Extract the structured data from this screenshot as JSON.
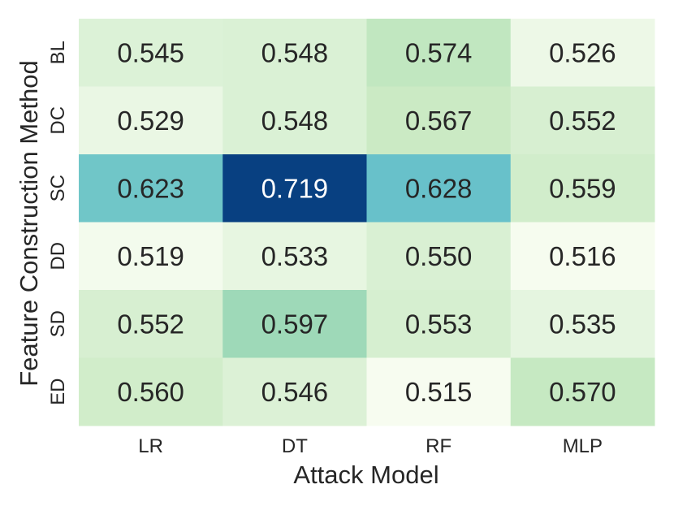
{
  "chart_data": {
    "type": "heatmap",
    "title": "",
    "xlabel": "Attack Model",
    "ylabel": "Feature Construction Method",
    "x_categories": [
      "LR",
      "DT",
      "RF",
      "MLP"
    ],
    "y_categories": [
      "BL",
      "DC",
      "SC",
      "DD",
      "SD",
      "ED"
    ],
    "values": [
      [
        0.545,
        0.548,
        0.574,
        0.526
      ],
      [
        0.529,
        0.548,
        0.567,
        0.552
      ],
      [
        0.623,
        0.719,
        0.628,
        0.559
      ],
      [
        0.519,
        0.533,
        0.55,
        0.516
      ],
      [
        0.552,
        0.597,
        0.553,
        0.535
      ],
      [
        0.56,
        0.546,
        0.515,
        0.57
      ]
    ],
    "value_format": "3 decimals",
    "colormap": "GnBu",
    "color_range": [
      0.515,
      0.719
    ],
    "colorbar": false,
    "grid": false
  }
}
